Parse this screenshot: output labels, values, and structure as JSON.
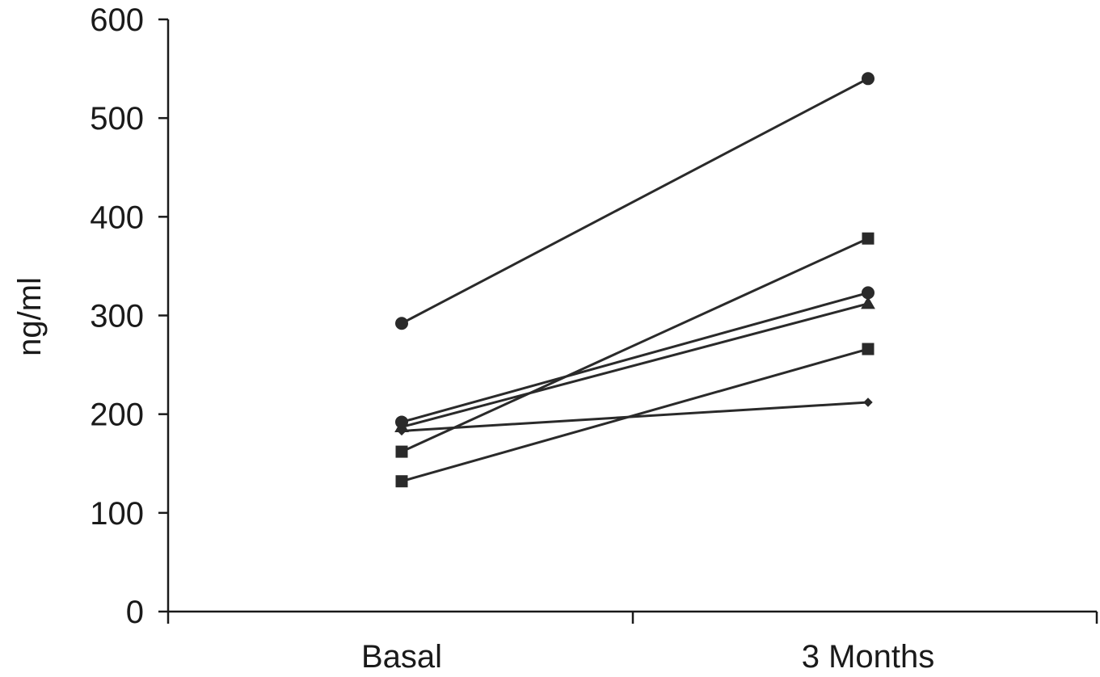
{
  "chart_data": {
    "type": "line",
    "categories": [
      "Basal",
      "3 Months"
    ],
    "ylabel": "ng/ml",
    "ylim": [
      0,
      600
    ],
    "yticks": [
      0,
      100,
      200,
      300,
      400,
      500,
      600
    ],
    "grid": false,
    "series": [
      {
        "values": [
          292,
          540
        ],
        "marker": "circle"
      },
      {
        "values": [
          162,
          378
        ],
        "marker": "square"
      },
      {
        "values": [
          192,
          323
        ],
        "marker": "circle"
      },
      {
        "values": [
          187,
          312
        ],
        "marker": "triangle"
      },
      {
        "values": [
          132,
          266
        ],
        "marker": "square"
      },
      {
        "values": [
          183,
          212
        ],
        "marker": "diamond"
      }
    ]
  }
}
